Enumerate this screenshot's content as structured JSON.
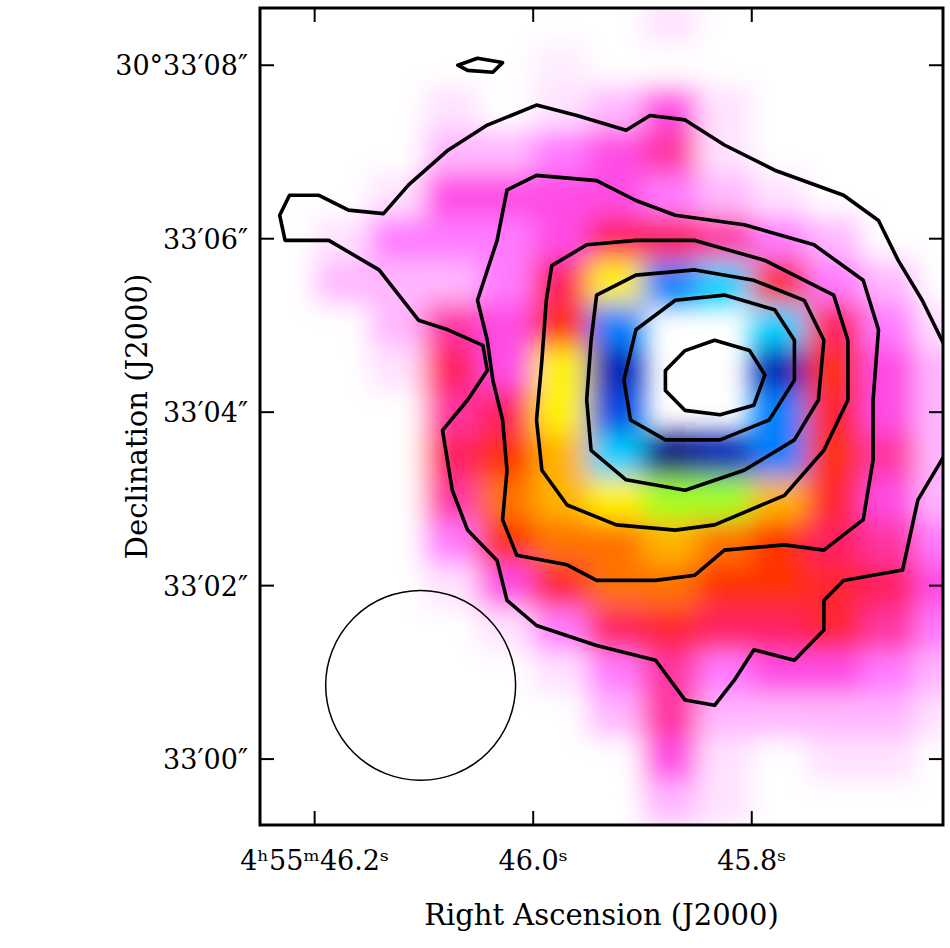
{
  "chart_data": {
    "type": "image_contour",
    "xlabel": "Right Ascension (J2000)",
    "ylabel": "Declination (J2000)",
    "color": "#000000",
    "xlim": [
      46.25,
      45.625
    ],
    "ylim": [
      -0.76,
      8.66
    ],
    "xticks": [
      {
        "value": 46.2,
        "label": "4ʰ55ᵐ46.2ˢ"
      },
      {
        "value": 46.0,
        "label": "46.0ˢ"
      },
      {
        "value": 45.8,
        "label": "45.8ˢ"
      }
    ],
    "yticks": [
      {
        "value": 8,
        "label": "30°33′08″"
      },
      {
        "value": 6,
        "label": "33′06″"
      },
      {
        "value": 4,
        "label": "33′04″"
      },
      {
        "value": 2,
        "label": "33′02″"
      },
      {
        "value": 0,
        "label": "33′00″"
      }
    ],
    "image": {
      "zlim": [
        0,
        1
      ],
      "x": [
        46.225,
        46.175,
        46.125,
        46.075,
        46.025,
        45.975,
        45.925,
        45.875,
        45.825,
        45.775,
        45.725,
        45.675,
        45.625
      ],
      "y": [
        8.5,
        8.0,
        7.5,
        7.0,
        6.5,
        6.0,
        5.5,
        5.0,
        4.5,
        4.0,
        3.5,
        3.0,
        2.5,
        2.0,
        1.5,
        1.0,
        0.5,
        0.0,
        -0.5
      ],
      "values": [
        [
          0,
          0,
          0,
          0,
          0,
          0,
          0,
          0.05,
          0,
          0,
          0,
          0,
          0
        ],
        [
          0,
          0,
          0,
          0,
          0,
          0.03,
          0,
          0,
          0,
          0,
          0,
          0,
          0
        ],
        [
          0,
          0,
          0,
          0.05,
          0,
          0.05,
          0.1,
          0.2,
          0.05,
          0,
          0,
          0,
          0
        ],
        [
          0,
          0,
          0,
          0.1,
          0.1,
          0.15,
          0.2,
          0.25,
          0.05,
          0,
          0,
          0,
          0
        ],
        [
          0,
          0,
          0.05,
          0.2,
          0.2,
          0.2,
          0.2,
          0.15,
          0.1,
          0.05,
          0,
          0,
          0
        ],
        [
          0,
          0.05,
          0.15,
          0.15,
          0.15,
          0.2,
          0.3,
          0.3,
          0.25,
          0.15,
          0.1,
          0,
          0
        ],
        [
          0,
          0.1,
          0.1,
          0.1,
          0.15,
          0.3,
          0.55,
          0.8,
          0.75,
          0.35,
          0.15,
          0.1,
          0
        ],
        [
          0,
          0,
          0.1,
          0.25,
          0.2,
          0.4,
          0.8,
          null,
          null,
          0.75,
          0.3,
          0.15,
          0.05
        ],
        [
          0,
          0,
          0.05,
          0.3,
          0.2,
          0.55,
          0.9,
          null,
          null,
          0.9,
          0.4,
          0.2,
          0.1
        ],
        [
          0,
          0,
          0,
          0.25,
          0.3,
          0.55,
          0.85,
          null,
          null,
          0.8,
          0.35,
          0.2,
          0.1
        ],
        [
          0,
          0,
          0,
          0.3,
          0.4,
          0.5,
          0.75,
          0.95,
          0.9,
          0.8,
          0.4,
          0.25,
          0.1
        ],
        [
          0,
          0,
          0,
          0.25,
          0.45,
          0.5,
          0.55,
          0.6,
          0.6,
          0.5,
          0.35,
          0.2,
          0.1
        ],
        [
          0,
          0,
          0,
          0.15,
          0.4,
          0.45,
          0.45,
          0.5,
          0.45,
          0.4,
          0.3,
          0.25,
          0.15
        ],
        [
          0,
          0,
          0,
          0.05,
          0.2,
          0.35,
          0.45,
          0.45,
          0.4,
          0.4,
          0.35,
          0.3,
          0.2
        ],
        [
          0,
          0,
          0,
          0,
          0.05,
          0.15,
          0.3,
          0.35,
          0.3,
          0.3,
          0.35,
          0.25,
          0.15
        ],
        [
          0,
          0,
          0,
          0,
          0,
          0.05,
          0.15,
          0.25,
          0.15,
          0.2,
          0.2,
          0.15,
          0.1
        ],
        [
          0,
          0,
          0,
          0,
          0,
          0,
          0.1,
          0.25,
          0.1,
          0.1,
          0.1,
          0.1,
          0.05
        ],
        [
          0,
          0,
          0,
          0,
          0,
          0,
          0,
          0.2,
          0.05,
          0,
          0.05,
          0.05,
          0
        ],
        [
          0,
          0,
          0,
          0,
          0,
          0,
          0,
          0.1,
          0.05,
          0,
          0,
          0,
          0
        ]
      ]
    },
    "contours": [
      {
        "x": [
          46.232,
          46.223,
          46.196,
          46.169,
          46.137,
          46.114,
          46.078,
          46.042,
          45.997,
          45.96,
          45.915,
          45.893,
          45.861,
          45.825,
          45.779,
          45.716,
          45.684,
          45.666,
          45.644,
          45.617,
          45.621,
          45.648,
          45.662,
          45.716,
          45.734,
          45.734,
          45.761,
          45.798,
          45.816,
          45.834,
          45.861,
          45.888,
          45.942,
          45.997,
          46.024,
          46.033,
          46.06,
          46.074,
          46.083,
          46.06,
          46.042,
          46.046,
          46.078,
          46.105,
          46.141,
          46.187,
          46.227
        ],
        "y": [
          6.27,
          6.5,
          6.5,
          6.33,
          6.29,
          6.62,
          7.02,
          7.31,
          7.54,
          7.42,
          7.25,
          7.42,
          7.37,
          7.08,
          6.79,
          6.5,
          6.21,
          5.75,
          5.29,
          4.6,
          3.56,
          2.99,
          2.18,
          2.06,
          1.83,
          1.49,
          1.14,
          1.26,
          0.91,
          0.62,
          0.68,
          1.14,
          1.31,
          1.54,
          1.83,
          2.29,
          2.64,
          3.1,
          3.79,
          4.14,
          4.48,
          4.77,
          4.95,
          5.06,
          5.64,
          5.98,
          5.98
        ]
      },
      {
        "x": [
          46.024,
          45.997,
          45.942,
          45.906,
          45.87,
          45.807,
          45.743,
          45.698,
          45.684,
          45.689,
          45.689,
          45.698,
          45.734,
          45.77,
          45.825,
          45.852,
          45.888,
          45.942,
          45.969,
          46.015,
          46.028,
          46.024,
          46.028,
          46.037,
          46.042,
          46.051,
          46.033
        ],
        "y": [
          6.56,
          6.73,
          6.67,
          6.44,
          6.27,
          6.16,
          5.93,
          5.52,
          4.95,
          4.14,
          3.45,
          2.76,
          2.41,
          2.47,
          2.41,
          2.12,
          2.06,
          2.06,
          2.24,
          2.35,
          2.76,
          3.33,
          3.91,
          4.37,
          4.83,
          5.29,
          5.98
        ]
      },
      {
        "x": [
          45.983,
          45.951,
          45.906,
          45.852,
          45.788,
          45.725,
          45.712,
          45.712,
          45.734,
          45.77,
          45.834,
          45.87,
          45.924,
          45.969,
          45.992,
          45.997,
          45.992,
          45.988
        ],
        "y": [
          5.69,
          5.93,
          5.98,
          5.98,
          5.75,
          5.35,
          4.83,
          4.14,
          3.56,
          3.04,
          2.7,
          2.64,
          2.7,
          2.93,
          3.33,
          3.91,
          4.6,
          5.29
        ]
      },
      {
        "x": [
          45.942,
          45.906,
          45.852,
          45.798,
          45.752,
          45.734,
          45.739,
          45.761,
          45.807,
          45.861,
          45.915,
          45.947,
          45.951,
          45.947
        ],
        "y": [
          5.35,
          5.58,
          5.64,
          5.52,
          5.29,
          4.83,
          4.14,
          3.68,
          3.33,
          3.1,
          3.22,
          3.56,
          4.14,
          4.83
        ]
      },
      {
        "x": [
          45.906,
          45.87,
          45.825,
          45.779,
          45.761,
          45.761,
          45.784,
          45.829,
          45.879,
          45.911,
          45.917
        ],
        "y": [
          4.95,
          5.29,
          5.35,
          5.18,
          4.83,
          4.37,
          3.91,
          3.68,
          3.68,
          3.91,
          4.37
        ]
      },
      {
        "x": [
          45.879,
          45.861,
          45.834,
          45.802,
          45.788,
          45.798,
          45.829,
          45.861,
          45.879
        ],
        "y": [
          4.48,
          4.71,
          4.83,
          4.71,
          4.43,
          4.08,
          3.97,
          4.02,
          4.25
        ]
      },
      {
        "x": [
          46.069,
          46.051,
          46.028,
          46.037,
          46.06
        ],
        "y": [
          8.0,
          8.08,
          8.03,
          7.92,
          7.94
        ]
      }
    ],
    "beam": {
      "x": 46.103,
      "y": 0.85,
      "diameter": 2.19
    }
  }
}
